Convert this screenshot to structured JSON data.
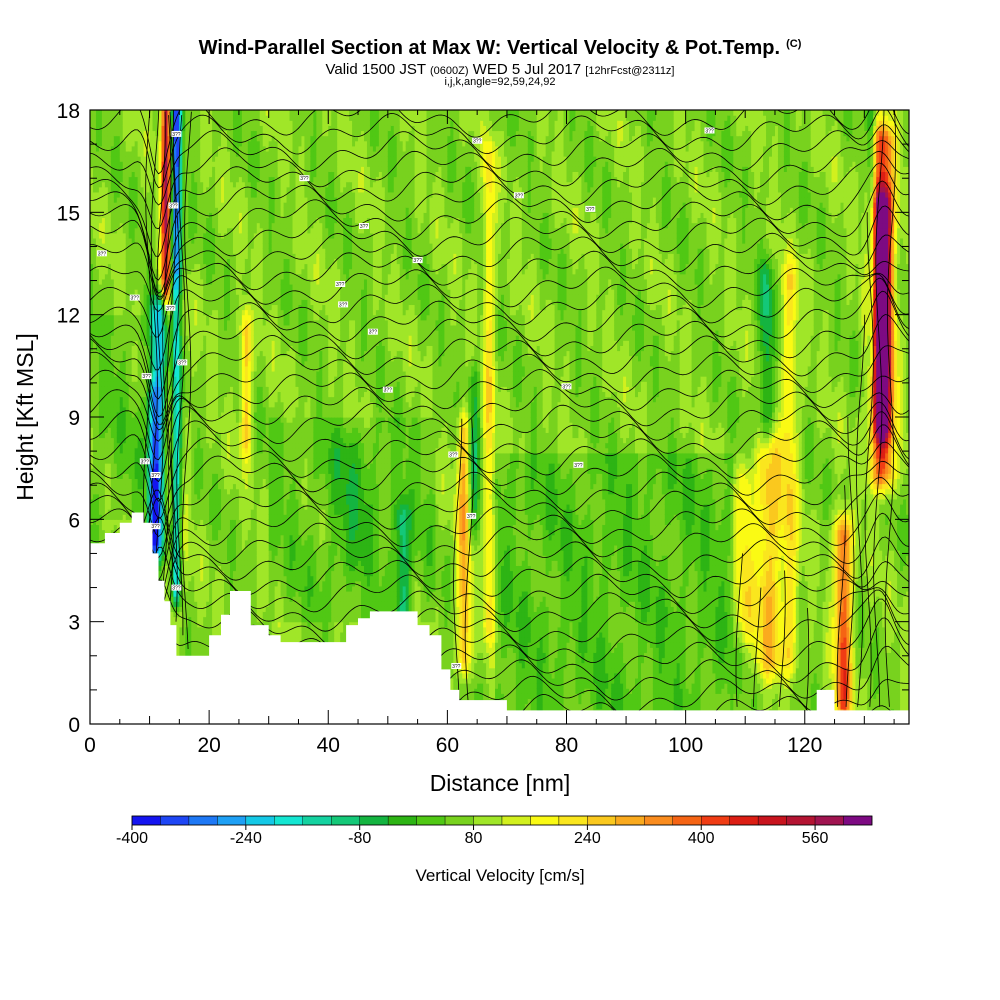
{
  "header": {
    "title": "Wind-Parallel Section at Max W: Vertical Velocity & Pot.Temp.",
    "copyright": "(C)",
    "valid_prefix": "Valid 1500 JST",
    "valid_utc": "(0600Z)",
    "valid_date": "WED 5 Jul 2017",
    "forecast": "[12hrFcst@2311z]",
    "grid_info": "i,j,k,angle=92,59,24,92"
  },
  "chart_data": {
    "type": "heatmap",
    "xlabel": "Distance [nm]",
    "ylabel": "Height [Kft MSL]",
    "xlim": [
      0,
      137.5
    ],
    "ylim": [
      0,
      18
    ],
    "x_ticks": [
      0,
      20,
      40,
      60,
      80,
      100,
      120
    ],
    "y_ticks": [
      0,
      3,
      6,
      9,
      12,
      15,
      18
    ],
    "colorbar": {
      "title": "Vertical Velocity [cm/s]",
      "tick_labels": [
        "-400",
        "-240",
        "-80",
        "80",
        "240",
        "400",
        "560"
      ],
      "tick_values": [
        -400,
        -240,
        -80,
        80,
        240,
        400,
        560
      ],
      "range": [
        -400,
        640
      ],
      "step": 40,
      "colors": [
        "#1414f0",
        "#1e46f5",
        "#1e78f5",
        "#1ea0f5",
        "#14c8e6",
        "#14e6d2",
        "#14d2a0",
        "#14c878",
        "#14b440",
        "#2db414",
        "#50c814",
        "#78d21e",
        "#a0e628",
        "#d2f01e",
        "#fafa14",
        "#fae61e",
        "#fac81e",
        "#faaa1e",
        "#fa8c1e",
        "#f56414",
        "#f03c14",
        "#dc1e14",
        "#c8141e",
        "#b41432",
        "#a01450",
        "#7d0a82"
      ]
    },
    "terrain_kft": [
      [
        0,
        5.3
      ],
      [
        2.5,
        5.6
      ],
      [
        5,
        5.9
      ],
      [
        7,
        6.2
      ],
      [
        9,
        5.9
      ],
      [
        10.5,
        5.0
      ],
      [
        11.5,
        4.2
      ],
      [
        12.5,
        3.6
      ],
      [
        13.5,
        2.9
      ],
      [
        14.5,
        2.0
      ],
      [
        17.5,
        2.0
      ],
      [
        20,
        2.6
      ],
      [
        22,
        3.2
      ],
      [
        23.5,
        3.9
      ],
      [
        25,
        3.9
      ],
      [
        27,
        2.9
      ],
      [
        30,
        2.6
      ],
      [
        32,
        2.4
      ],
      [
        36,
        2.4
      ],
      [
        41,
        2.4
      ],
      [
        43,
        2.9
      ],
      [
        45,
        3.1
      ],
      [
        47,
        3.3
      ],
      [
        52,
        3.3
      ],
      [
        55,
        2.9
      ],
      [
        57,
        2.6
      ],
      [
        59,
        1.6
      ],
      [
        60.5,
        1.0
      ],
      [
        62,
        0.7
      ],
      [
        66,
        0.7
      ],
      [
        70,
        0.4
      ],
      [
        75,
        0.4
      ],
      [
        121,
        0.4
      ],
      [
        122,
        1.0
      ],
      [
        124,
        1.0
      ],
      [
        125,
        0.4
      ],
      [
        137.5,
        0.4
      ]
    ],
    "velocity_features": [
      {
        "x": 14.5,
        "w": 0.9,
        "y0": 4,
        "y1": 18,
        "value": -400
      },
      {
        "x": 12.8,
        "w": 0.8,
        "y0": 13,
        "y1": 18,
        "value": 480
      },
      {
        "x": 11.5,
        "w": 1.4,
        "y0": 5.5,
        "y1": 12,
        "value": -300
      },
      {
        "x": 10.6,
        "w": 1.0,
        "y0": 5.0,
        "y1": 9.5,
        "value": -200
      },
      {
        "x": 14.2,
        "w": 1.6,
        "y0": 3.5,
        "y1": 12,
        "value": 160
      },
      {
        "x": 26.2,
        "w": 0.9,
        "y0": 8.5,
        "y1": 11.5,
        "value": 200
      },
      {
        "x": 44.0,
        "w": 4.0,
        "y0": 5.0,
        "y1": 8.0,
        "value": -60
      },
      {
        "x": 62.8,
        "w": 1.1,
        "y0": 2.0,
        "y1": 8.5,
        "value": 220
      },
      {
        "x": 64.5,
        "w": 1.0,
        "y0": 6.0,
        "y1": 10.0,
        "value": -120
      },
      {
        "x": 67.0,
        "w": 1.0,
        "y0": 3.0,
        "y1": 16.5,
        "value": 140
      },
      {
        "x": 52.5,
        "w": 1.2,
        "y0": 1.5,
        "y1": 6.0,
        "value": -160
      },
      {
        "x": 114.0,
        "w": 2.2,
        "y0": 2.0,
        "y1": 8.0,
        "value": 200
      },
      {
        "x": 110.0,
        "w": 1.5,
        "y0": 3.0,
        "y1": 7.0,
        "value": 130
      },
      {
        "x": 117.5,
        "w": 1.4,
        "y0": 2.0,
        "y1": 13.0,
        "value": 140
      },
      {
        "x": 113.5,
        "w": 1.2,
        "y0": 8.5,
        "y1": 13.0,
        "value": -140
      },
      {
        "x": 126.5,
        "w": 1.4,
        "y0": 0.7,
        "y1": 5.5,
        "value": 330
      },
      {
        "x": 133.0,
        "w": 1.3,
        "y0": 9.0,
        "y1": 15.0,
        "value": 520
      },
      {
        "x": 133.0,
        "w": 2.0,
        "y0": 7.5,
        "y1": 17.0,
        "value": 360
      },
      {
        "x": 131.2,
        "w": 0.7,
        "y0": 11.0,
        "y1": 17.5,
        "value": -160
      }
    ],
    "contour_labels": [
      "3??",
      "3??",
      "3??",
      "3??",
      "3??",
      "3??",
      "3??",
      "3??",
      "3??",
      "3??",
      "3??",
      "3??",
      "3??",
      "3??",
      "3??",
      "3??",
      "3??",
      "3??",
      "3??",
      "3??",
      "3??",
      "3??",
      "3??",
      "3??",
      "3??",
      "3??",
      "3??"
    ]
  }
}
